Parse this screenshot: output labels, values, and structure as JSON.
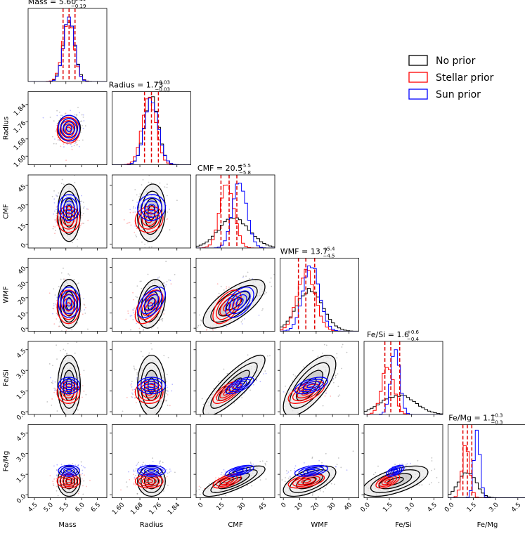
{
  "chart_data": {
    "type": "corner",
    "variables": [
      {
        "name": "Mass",
        "median": 5.6,
        "err_plus": 0.19,
        "err_minus": 0.19,
        "title_main": "Mass = 5.60",
        "title_sup": "+0.19",
        "title_sub": "−0.19",
        "range": [
          4.3,
          6.8
        ],
        "ticks": [
          4.5,
          5.0,
          5.5,
          6.0,
          6.5
        ],
        "tick_labels": [
          "4.5",
          "5.0",
          "5.5",
          "6.0",
          "6.5"
        ],
        "sd": {
          "none": 0.18,
          "stellar": 0.18,
          "sun": 0.17
        },
        "mean": {
          "none": 5.6,
          "stellar": 5.58,
          "sun": 5.6
        }
      },
      {
        "name": "Radius",
        "median": 1.73,
        "err_plus": 0.03,
        "err_minus": 0.03,
        "title_main": "Radius = 1.73",
        "title_sup": "+0.03",
        "title_sub": "−0.03",
        "range": [
          1.56,
          1.9
        ],
        "ticks": [
          1.6,
          1.68,
          1.76,
          1.84
        ],
        "tick_labels": [
          "1.60",
          "1.68",
          "1.76",
          "1.84"
        ],
        "sd": {
          "none": 0.03,
          "stellar": 0.03,
          "sun": 0.03
        },
        "mean": {
          "none": 1.73,
          "stellar": 1.72,
          "sun": 1.73
        }
      },
      {
        "name": "CMF",
        "median": 20.5,
        "err_plus": 5.5,
        "err_minus": 5.8,
        "title_main": "CMF = 20.5",
        "title_sup": "+5.5",
        "title_sub": "−5.8",
        "range": [
          -3,
          53
        ],
        "ticks": [
          0,
          15,
          30,
          45
        ],
        "tick_labels": [
          "0",
          "15",
          "30",
          "45"
        ],
        "sd": {
          "none": 11,
          "stellar": 5,
          "sun": 5
        },
        "mean": {
          "none": 24,
          "stellar": 19,
          "sun": 28
        }
      },
      {
        "name": "WMF",
        "median": 13.7,
        "err_plus": 5.4,
        "err_minus": 4.5,
        "title_main": "WMF = 13.7",
        "title_sup": "+5.4",
        "title_sub": "−4.5",
        "range": [
          -2,
          46
        ],
        "ticks": [
          0,
          10,
          20,
          30,
          40
        ],
        "tick_labels": [
          "0",
          "10",
          "20",
          "30",
          "40"
        ],
        "sd": {
          "none": 8,
          "stellar": 5.5,
          "sun": 5
        },
        "mean": {
          "none": 16,
          "stellar": 14,
          "sun": 17
        }
      },
      {
        "name": "Fe/Si",
        "median": 1.6,
        "err_plus": 0.6,
        "err_minus": 0.4,
        "title_main": "Fe/Si = 1.6",
        "title_sup": "+0.6",
        "title_sub": "−0.4",
        "range": [
          -0.2,
          5.1
        ],
        "ticks": [
          0.0,
          1.5,
          3.0,
          4.5
        ],
        "tick_labels": [
          "0.0",
          "1.5",
          "3.0",
          "4.5"
        ],
        "sd": {
          "none": 1.1,
          "stellar": 0.4,
          "sun": 0.3
        },
        "mean": {
          "none": 1.9,
          "stellar": 1.4,
          "sun": 1.9
        }
      },
      {
        "name": "Fe/Mg",
        "median": 1.1,
        "err_plus": 0.3,
        "err_minus": 0.3,
        "title_main": "Fe/Mg = 1.1",
        "title_sup": "+0.3",
        "title_sub": "−0.3",
        "range": [
          -0.2,
          5.1
        ],
        "ticks": [
          0.0,
          1.5,
          3.0,
          4.5
        ],
        "tick_labels": [
          "0.0",
          "1.5",
          "3.0",
          "4.5"
        ],
        "sd": {
          "none": 0.55,
          "stellar": 0.25,
          "sun": 0.2
        },
        "mean": {
          "none": 1.0,
          "stellar": 1.0,
          "sun": 1.75
        }
      }
    ],
    "series": [
      {
        "key": "none",
        "name": "No prior",
        "color": "#000000",
        "scatter": "#7f7f7f"
      },
      {
        "key": "stellar",
        "name": "Stellar prior",
        "color": "#ff0000",
        "scatter": "#ff6666"
      },
      {
        "key": "sun",
        "name": "Sun prior",
        "color": "#0000ff",
        "scatter": "#6a6aff"
      }
    ],
    "median_line_color": "#e00000",
    "legend_position": "top-right"
  }
}
